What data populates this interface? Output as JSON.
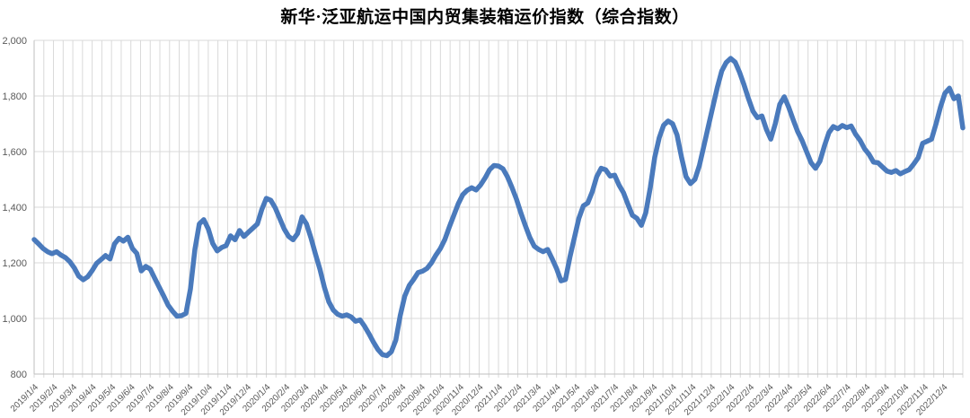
{
  "chart": {
    "title": "新华·泛亚航运中国内贸集装箱运价指数（综合指数）"
  },
  "colors": {
    "line": "#4a7abc",
    "grid": "#d9d9d9",
    "axis": "#bfbfbf",
    "tick_text": "#595959",
    "title_text": "#000000",
    "background": "#ffffff"
  },
  "chart_data": {
    "type": "line",
    "title": "新华·泛亚航运中国内贸集装箱运价指数（综合指数）",
    "xlabel": "",
    "ylabel": "",
    "ylim": [
      800,
      2000
    ],
    "y_tick_step": 200,
    "y_tick_labels": [
      "2,000",
      "1,800",
      "1,600",
      "1,400",
      "1,200",
      "1,000",
      "800"
    ],
    "grid": "on",
    "legend_position": "none",
    "frequency": "weekly",
    "x_start": "2019/1/4",
    "x_end": "2022/12/30",
    "x_tick_labels": [
      "2019/1/4",
      "2019/2/4",
      "2019/3/4",
      "2019/4/4",
      "2019/5/4",
      "2019/6/4",
      "2019/7/4",
      "2019/8/4",
      "2019/9/4",
      "2019/10/4",
      "2019/11/4",
      "2019/12/4",
      "2020/1/4",
      "2020/2/4",
      "2020/3/4",
      "2020/4/4",
      "2020/5/4",
      "2020/6/4",
      "2020/7/4",
      "2020/8/4",
      "2020/9/4",
      "2020/10/4",
      "2020/11/4",
      "2020/12/4",
      "2021/1/4",
      "2021/2/4",
      "2021/3/4",
      "2021/4/4",
      "2021/5/4",
      "2021/6/4",
      "2021/7/4",
      "2021/8/4",
      "2021/9/4",
      "2021/10/4",
      "2021/11/4",
      "2021/12/4",
      "2022/1/4",
      "2022/2/4",
      "2022/3/4",
      "2022/4/4",
      "2022/5/4",
      "2022/6/4",
      "2022/7/4",
      "2022/8/4",
      "2022/9/4",
      "2022/10/4",
      "2022/11/4",
      "2022/12/4"
    ],
    "series": [
      {
        "name": "综合指数",
        "values": [
          1284,
          1268,
          1252,
          1240,
          1233,
          1240,
          1228,
          1219,
          1204,
          1182,
          1152,
          1139,
          1150,
          1172,
          1198,
          1212,
          1226,
          1214,
          1268,
          1288,
          1278,
          1292,
          1252,
          1234,
          1171,
          1187,
          1177,
          1145,
          1113,
          1081,
          1048,
          1026,
          1008,
          1010,
          1018,
          1105,
          1248,
          1340,
          1355,
          1322,
          1270,
          1243,
          1255,
          1262,
          1297,
          1283,
          1316,
          1295,
          1310,
          1325,
          1340,
          1392,
          1432,
          1425,
          1398,
          1360,
          1322,
          1295,
          1283,
          1305,
          1365,
          1340,
          1290,
          1232,
          1177,
          1113,
          1060,
          1030,
          1015,
          1008,
          1013,
          1005,
          990,
          995,
          972,
          945,
          915,
          888,
          870,
          866,
          880,
          922,
          1010,
          1080,
          1118,
          1140,
          1165,
          1170,
          1180,
          1200,
          1228,
          1252,
          1284,
          1329,
          1371,
          1413,
          1445,
          1461,
          1470,
          1462,
          1480,
          1505,
          1535,
          1550,
          1548,
          1538,
          1510,
          1472,
          1430,
          1380,
          1335,
          1292,
          1260,
          1248,
          1240,
          1248,
          1215,
          1180,
          1135,
          1140,
          1220,
          1290,
          1360,
          1405,
          1415,
          1455,
          1510,
          1540,
          1535,
          1512,
          1515,
          1480,
          1452,
          1410,
          1371,
          1360,
          1335,
          1380,
          1470,
          1580,
          1650,
          1695,
          1710,
          1700,
          1660,
          1580,
          1510,
          1485,
          1500,
          1550,
          1620,
          1690,
          1760,
          1830,
          1890,
          1920,
          1935,
          1922,
          1885,
          1840,
          1790,
          1745,
          1722,
          1728,
          1680,
          1645,
          1700,
          1770,
          1797,
          1760,
          1715,
          1672,
          1640,
          1600,
          1560,
          1540,
          1565,
          1620,
          1668,
          1690,
          1682,
          1694,
          1686,
          1692,
          1662,
          1640,
          1610,
          1590,
          1562,
          1560,
          1545,
          1530,
          1525,
          1532,
          1520,
          1528,
          1535,
          1555,
          1578,
          1630,
          1637,
          1645,
          1700,
          1760,
          1810,
          1828,
          1790,
          1800,
          1685
        ]
      }
    ]
  }
}
